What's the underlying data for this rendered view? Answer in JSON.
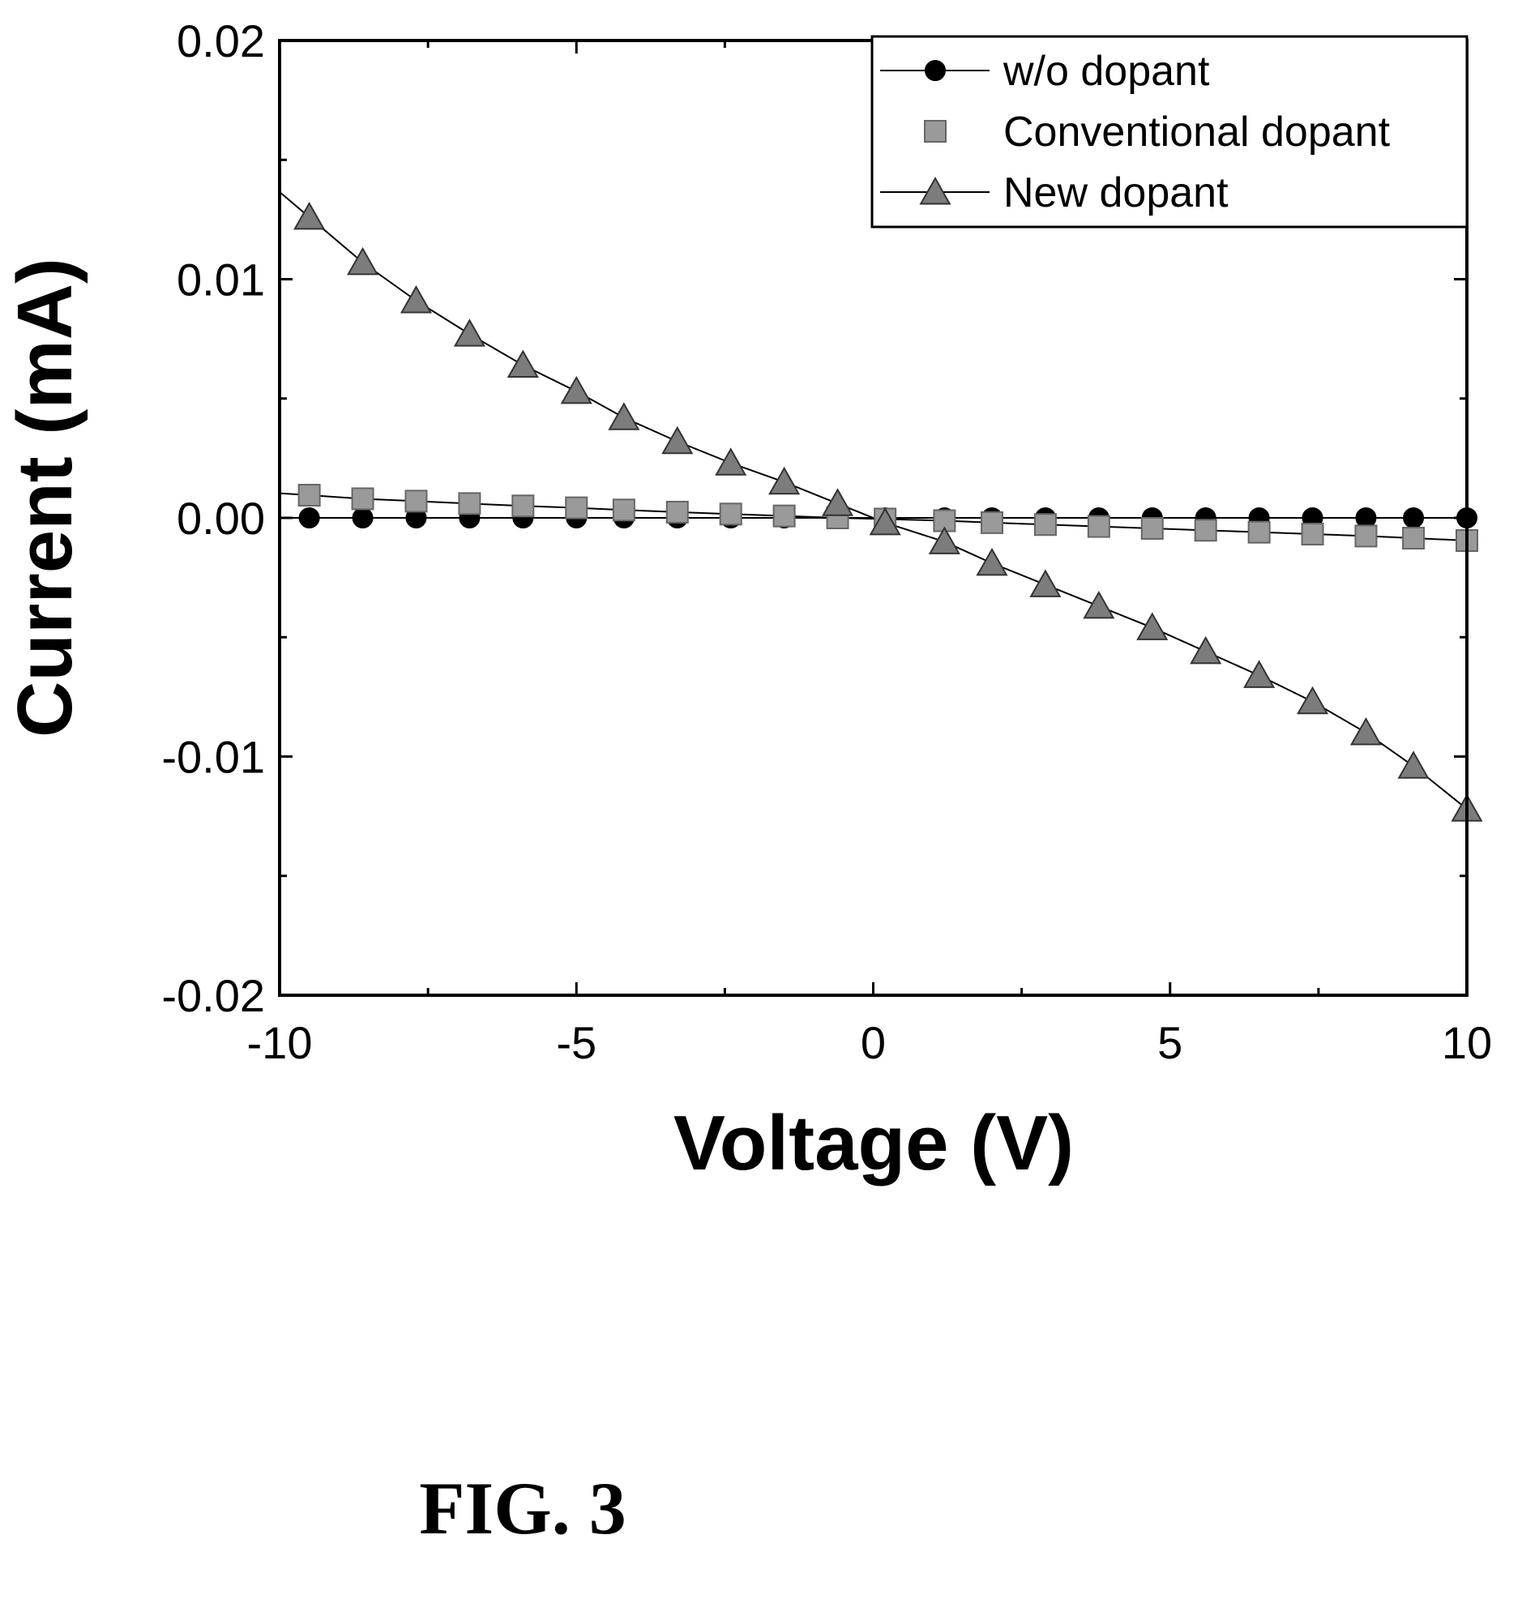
{
  "figure_label": "FIG. 3",
  "chart_data": {
    "type": "line",
    "title": "",
    "xlabel": "Voltage (V)",
    "ylabel": "Current (mA)",
    "xlim": [
      -10,
      10
    ],
    "ylim": [
      -0.02,
      0.02
    ],
    "x_ticks": [
      -10,
      -5,
      0,
      5,
      10
    ],
    "x_tick_labels": [
      "-10",
      "-5",
      "0",
      "5",
      "10"
    ],
    "y_ticks": [
      -0.02,
      -0.01,
      0.0,
      0.01,
      0.02
    ],
    "y_tick_labels": [
      "-0.02",
      "-0.01",
      "0.00",
      "0.01",
      "0.02"
    ],
    "grid": false,
    "legend_position": "top-right",
    "colors": {
      "axes": "#000000",
      "wo_dopant_marker": "#000000",
      "conventional_marker": "#9a9a9a",
      "new_marker": "#7c7c7c",
      "line": "#000000"
    },
    "series": [
      {
        "name": "w/o dopant",
        "marker": "circle",
        "x": [
          -9.5,
          -8.6,
          -7.7,
          -6.8,
          -5.9,
          -5.0,
          -4.2,
          -3.3,
          -2.4,
          -1.5,
          -0.6,
          0.2,
          1.2,
          2.0,
          2.9,
          3.8,
          4.7,
          5.6,
          6.5,
          7.4,
          8.3,
          9.1,
          10.0
        ],
        "y": [
          0,
          0,
          0,
          0,
          0,
          0,
          0,
          0,
          0,
          0,
          0,
          0,
          0,
          0,
          0,
          0,
          0,
          0,
          0,
          0,
          0,
          0,
          0
        ]
      },
      {
        "name": "Conventional dopant",
        "marker": "square",
        "x": [
          -9.5,
          -8.6,
          -7.7,
          -6.8,
          -5.9,
          -5.0,
          -4.2,
          -3.3,
          -2.4,
          -1.5,
          -0.6,
          0.2,
          1.2,
          2.0,
          2.9,
          3.8,
          4.7,
          5.6,
          6.5,
          7.4,
          8.3,
          9.1,
          10.0
        ],
        "y": [
          0.00095,
          0.0008,
          0.0007,
          0.0006,
          0.0005,
          0.00042,
          0.00033,
          0.00024,
          0.00016,
          8e-05,
          0.0,
          -5e-05,
          -0.00012,
          -0.0002,
          -0.00028,
          -0.00036,
          -0.00044,
          -0.00052,
          -0.0006,
          -0.00068,
          -0.00076,
          -0.00085,
          -0.00095
        ]
      },
      {
        "name": "New dopant",
        "marker": "triangle",
        "x": [
          -9.5,
          -8.6,
          -7.7,
          -6.8,
          -5.9,
          -5.0,
          -4.2,
          -3.3,
          -2.4,
          -1.5,
          -0.6,
          0.2,
          1.2,
          2.0,
          2.9,
          3.8,
          4.7,
          5.6,
          6.5,
          7.4,
          8.3,
          9.1,
          10.0
        ],
        "y": [
          0.0126,
          0.0107,
          0.0091,
          0.0077,
          0.0064,
          0.0053,
          0.0042,
          0.0032,
          0.0023,
          0.0015,
          0.0006,
          -0.0002,
          -0.001,
          -0.0019,
          -0.0028,
          -0.0037,
          -0.0046,
          -0.0056,
          -0.0066,
          -0.0077,
          -0.009,
          -0.0104,
          -0.0122
        ]
      }
    ]
  }
}
